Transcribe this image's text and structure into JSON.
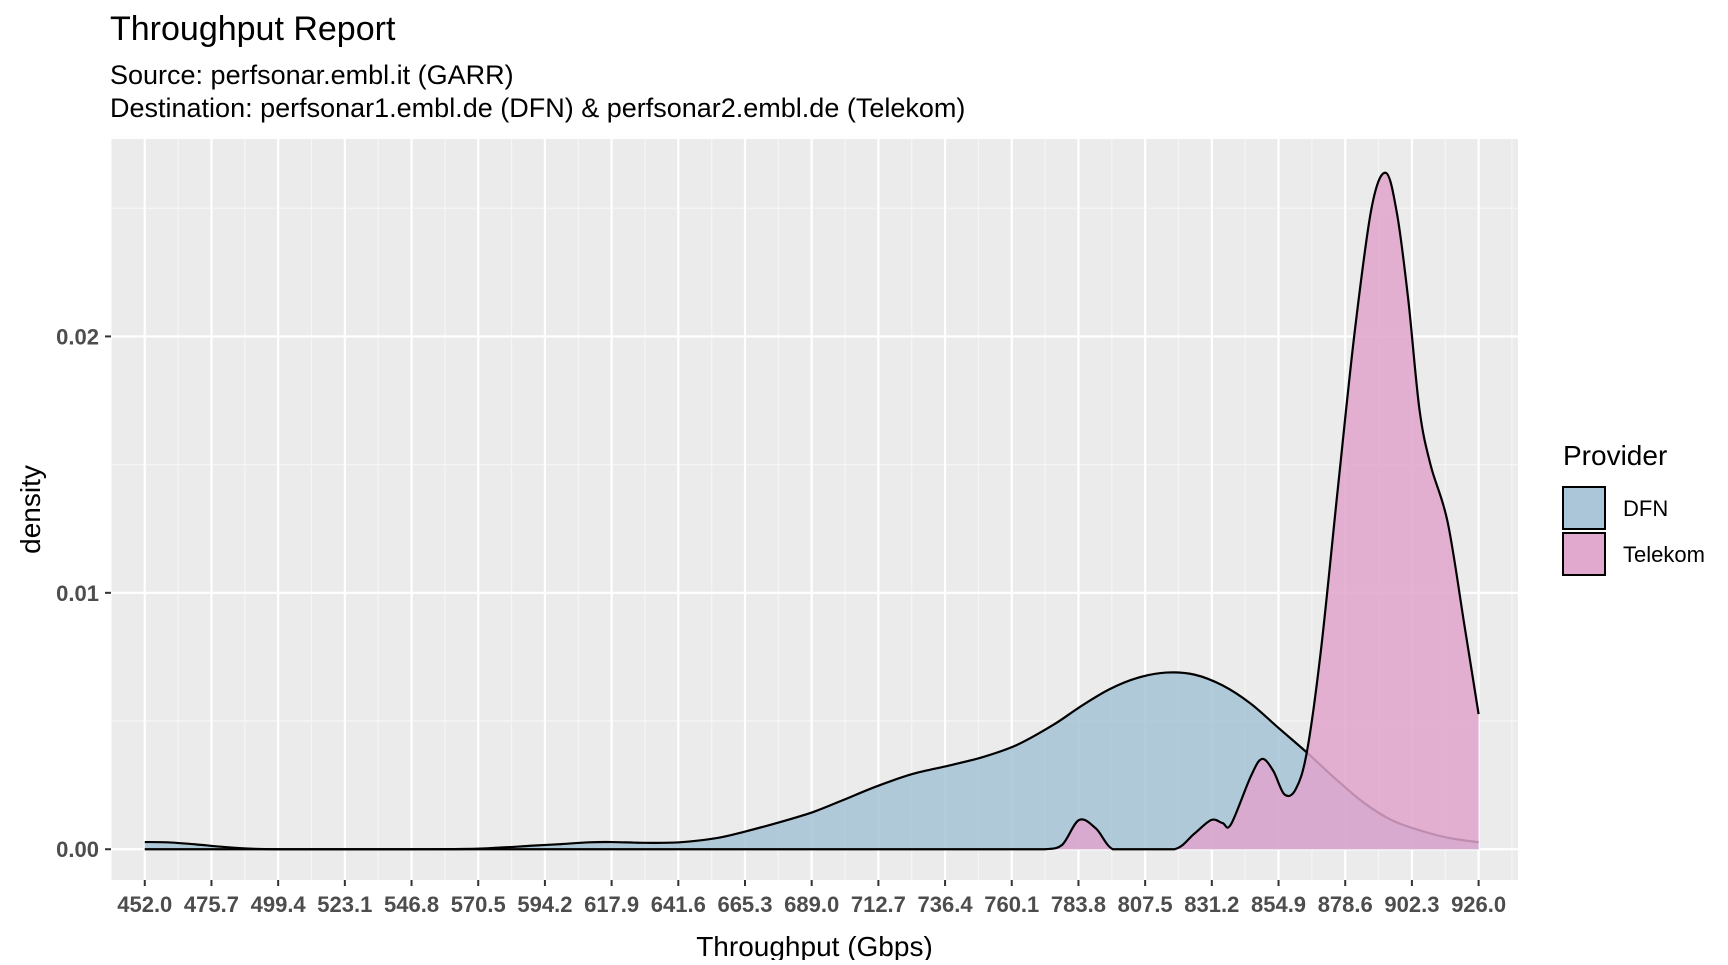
{
  "chart_data": {
    "type": "area",
    "title": "Throughput Report",
    "subtitle_lines": [
      "Source: perfsonar.embl.it (GARR)",
      "Destination: perfsonar1.embl.de (DFN) & perfsonar2.embl.de (Telekom)"
    ],
    "xlabel": "Throughput (Gbps)",
    "ylabel": "density",
    "xlim": [
      440.0,
      940.0
    ],
    "ylim": [
      -0.0012,
      0.0277
    ],
    "x_ticks": [
      "452.0",
      "475.7",
      "499.4",
      "523.1",
      "546.8",
      "570.5",
      "594.2",
      "617.9",
      "641.6",
      "665.3",
      "689.0",
      "712.7",
      "736.4",
      "760.1",
      "783.8",
      "807.5",
      "831.2",
      "854.9",
      "878.6",
      "902.3",
      "926.0"
    ],
    "y_ticks": [
      {
        "value": 0.0,
        "label": "0.00"
      },
      {
        "value": 0.01,
        "label": "0.01"
      },
      {
        "value": 0.02,
        "label": "0.02"
      }
    ],
    "grid": true,
    "legend": {
      "title": "Provider",
      "position": "right"
    },
    "series": [
      {
        "name": "DFN",
        "color": "#a6c3d6",
        "x": [
          452,
          460,
          470,
          480,
          490,
          500,
          520,
          545,
          570,
          590,
          600,
          610,
          618,
          630,
          642,
          655,
          665,
          680,
          690,
          700,
          712,
          725,
          738,
          750,
          762,
          775,
          785,
          795,
          805,
          815,
          825,
          835,
          845,
          855,
          865,
          875,
          885,
          895,
          905,
          915,
          926
        ],
        "y": [
          0.00028,
          0.00027,
          0.00019,
          9e-05,
          2e-05,
          0.0,
          0.0,
          0.0,
          2e-05,
          0.00014,
          0.0002,
          0.00027,
          0.00028,
          0.00025,
          0.00027,
          0.00043,
          0.00068,
          0.00113,
          0.00147,
          0.00191,
          0.00245,
          0.00294,
          0.00327,
          0.0036,
          0.00407,
          0.00486,
          0.0056,
          0.00625,
          0.00669,
          0.00689,
          0.00681,
          0.00639,
          0.00568,
          0.00472,
          0.00377,
          0.00276,
          0.00183,
          0.00114,
          0.00074,
          0.00045,
          0.00027
        ]
      },
      {
        "name": "Telekom",
        "color": "#e0a4cc",
        "x": [
          452,
          500,
          600,
          700,
          760,
          772,
          778,
          784,
          790,
          796,
          805,
          818,
          825,
          831,
          835,
          838,
          845,
          849,
          853,
          857,
          861,
          865,
          870,
          876,
          882,
          888,
          893,
          897,
          901,
          905,
          909,
          915,
          921,
          926
        ],
        "y": [
          0.0,
          0.0,
          0.0,
          0.0,
          0.0,
          0.0,
          0.00017,
          0.00114,
          0.00081,
          0.0,
          0.0,
          0.0,
          0.00061,
          0.00114,
          0.00102,
          0.00097,
          0.00283,
          0.00352,
          0.00306,
          0.00214,
          0.00234,
          0.00381,
          0.00779,
          0.01409,
          0.02021,
          0.02503,
          0.02638,
          0.02479,
          0.02144,
          0.01714,
          0.01496,
          0.01276,
          0.00871,
          0.00527
        ]
      }
    ]
  }
}
